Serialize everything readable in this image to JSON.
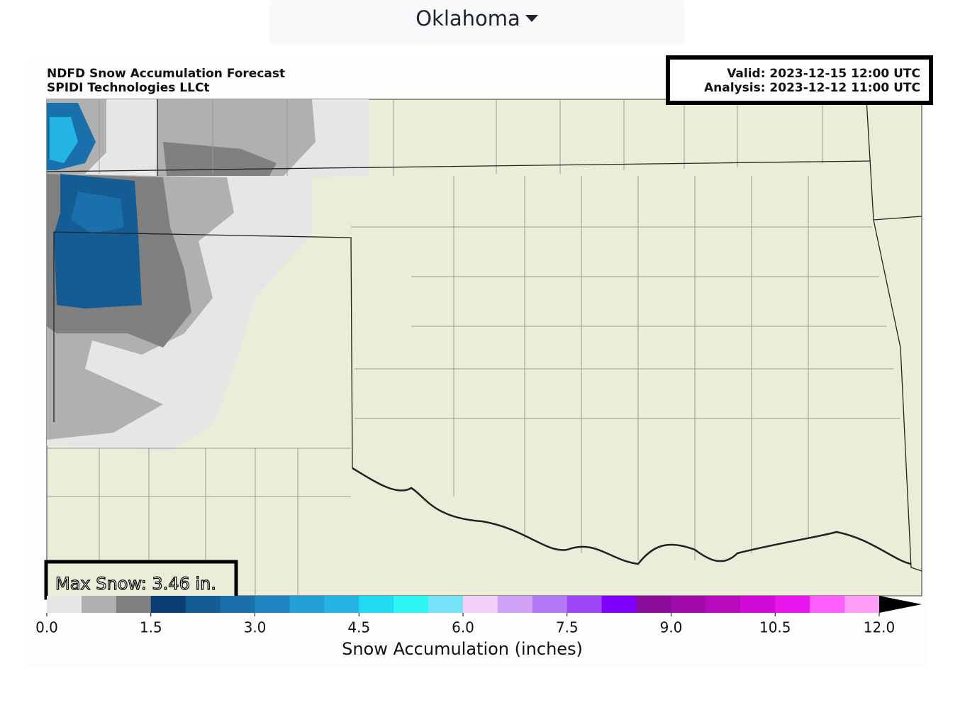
{
  "dropdown": {
    "label": "Oklahoma"
  },
  "map": {
    "title": "NDFD Snow Accumulation Forecast",
    "source": "SPIDI Technologies LLCt",
    "valid": "Valid: 2023-12-15 12:00 UTC",
    "analysis": "Analysis: 2023-12-12 11:00 UTC",
    "max_snow": "Max Snow: 3.46 in."
  },
  "colorbar": {
    "label": "Snow Accumulation (inches)",
    "ticks": [
      "0.0",
      "1.5",
      "3.0",
      "4.5",
      "6.0",
      "7.5",
      "9.0",
      "10.5",
      "12.0"
    ],
    "colors": [
      "#e6e6e6",
      "#b0b0b0",
      "#808080",
      "#0c3d70",
      "#135c94",
      "#1a70ab",
      "#1f84c0",
      "#229fd5",
      "#24b5e5",
      "#1fdcf2",
      "#2cf7f2",
      "#76e2f7",
      "#f1cff7",
      "#cfa2f5",
      "#b477f5",
      "#9b45f5",
      "#8000ff",
      "#8b0c9c",
      "#a10aab",
      "#b80bbd",
      "#d20ad7",
      "#ea16ee",
      "#ff5eff",
      "#ff9cf6"
    ],
    "extend_color": "#000000"
  }
}
